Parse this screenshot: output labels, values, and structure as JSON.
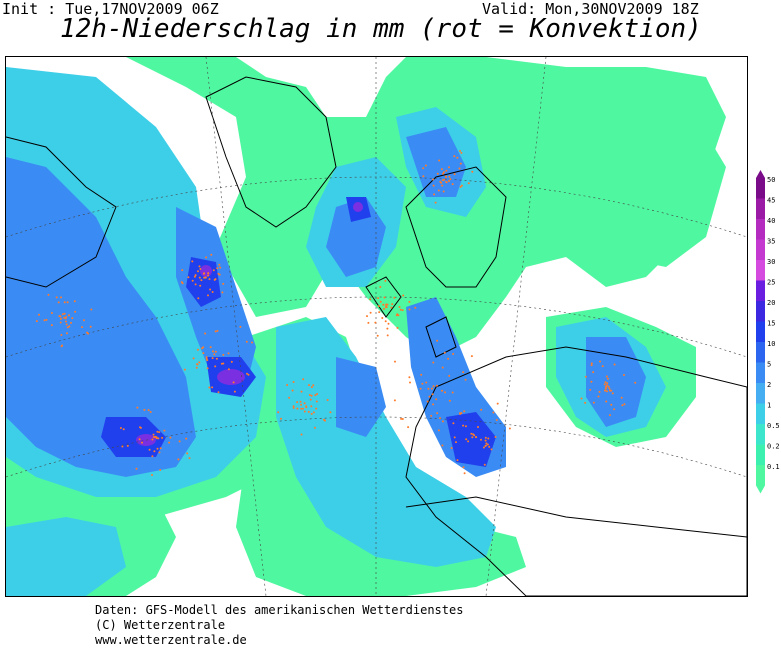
{
  "header": {
    "init_label": "Init : Tue,17NOV2009 06Z",
    "valid_label": "Valid: Mon,30NOV2009 18Z",
    "title": "12h-Niederschlag in mm (rot = Konvektion)"
  },
  "footer": {
    "line1": "Daten: GFS-Modell des amerikanischen Wetterdienstes",
    "line2": "(C) Wetterzentrale",
    "line3": "www.wetterzentrale.de"
  },
  "legend": {
    "levels": [
      "50",
      "45",
      "40",
      "35",
      "30",
      "25",
      "20",
      "15",
      "10",
      "5",
      "2",
      "1",
      "0.5",
      "0.2",
      "0.1"
    ],
    "colors": [
      "#7a0c8a",
      "#9b1aa6",
      "#b42bbf",
      "#c43ad0",
      "#d54be0",
      "#6a1ee0",
      "#3c28e0",
      "#2040ee",
      "#2c66f0",
      "#3a8cf4",
      "#45aef2",
      "#3ecfe8",
      "#3ce6cc",
      "#3cf0b0",
      "#4ff7a0"
    ]
  },
  "map": {
    "land_color": "#ffffff",
    "precip_colors": {
      "light": "#4ff7a0",
      "light2": "#3ce6cc",
      "medium": "#3ecfe8",
      "medium2": "#45aef2",
      "heavy": "#3a8cf4",
      "heavy2": "#2c66f0",
      "very_heavy": "#2040ee",
      "extreme": "#7a2fe0"
    },
    "convection_color": "#ff7a2a"
  }
}
